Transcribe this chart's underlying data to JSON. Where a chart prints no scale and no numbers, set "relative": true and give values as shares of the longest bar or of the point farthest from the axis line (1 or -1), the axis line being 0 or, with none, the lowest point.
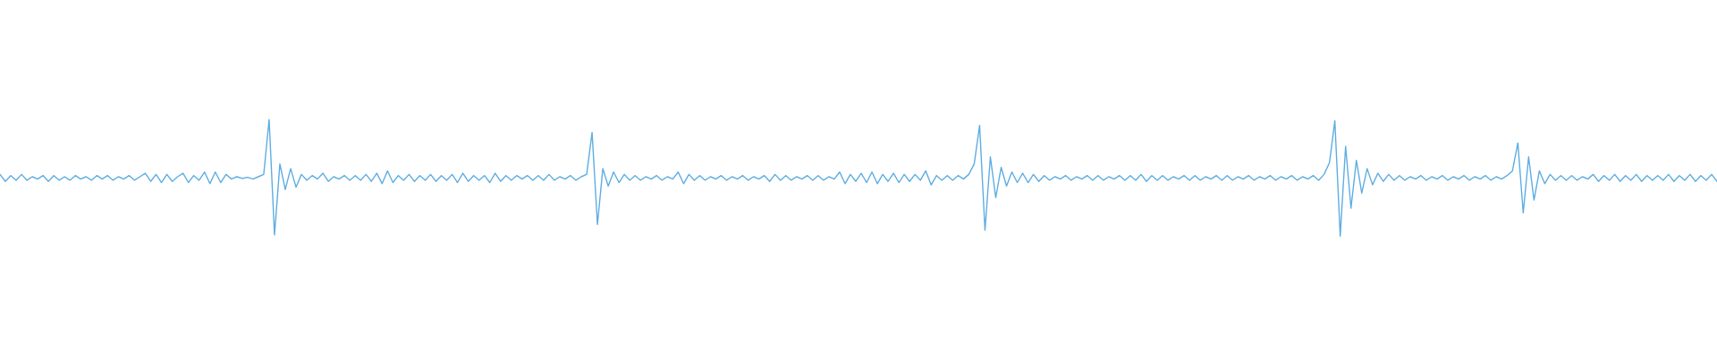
{
  "chart_data": {
    "type": "line",
    "relative": true,
    "categories": [
      null,
      null,
      null,
      null,
      null,
      null,
      null,
      null,
      null,
      null,
      null,
      null,
      null,
      null,
      null,
      null,
      null,
      null,
      null,
      null,
      null,
      null,
      null,
      null,
      null,
      null,
      null,
      null,
      null,
      null,
      null,
      null,
      null,
      null,
      null,
      null,
      null,
      null,
      null,
      null,
      null,
      null,
      null,
      null,
      null,
      null,
      null,
      null,
      null,
      null,
      null,
      null,
      null,
      null,
      null,
      null,
      null,
      null,
      null,
      null,
      null,
      null,
      null,
      null,
      null,
      null,
      null,
      null,
      null,
      null,
      null,
      null,
      null,
      null,
      null,
      null,
      null,
      null,
      null,
      null,
      null,
      null,
      null,
      null,
      null,
      null,
      null,
      null,
      null,
      null,
      null,
      null,
      null,
      null,
      null,
      null,
      null,
      null,
      null,
      null,
      null,
      null,
      null,
      null,
      null,
      null,
      null,
      null,
      null,
      null,
      null,
      null,
      null,
      null,
      null,
      null,
      null,
      null,
      null,
      null,
      null,
      null,
      null,
      null,
      null,
      null,
      null,
      null,
      null,
      null,
      null,
      null,
      null,
      null,
      null,
      null,
      null,
      null,
      null,
      null,
      null,
      null,
      null,
      null,
      null,
      null,
      null,
      null,
      null,
      null,
      null,
      null,
      null,
      null,
      null,
      null,
      null,
      null,
      null,
      null,
      null,
      null,
      null,
      null,
      null,
      null,
      null,
      null,
      null,
      null,
      null,
      null,
      null,
      null,
      null,
      null,
      null,
      null,
      null,
      null,
      null,
      null,
      null,
      null,
      null,
      null,
      null,
      null,
      null,
      null,
      null,
      null,
      null,
      null,
      null,
      null,
      null,
      null,
      null,
      null,
      null,
      null,
      null,
      null,
      null,
      null,
      null,
      null,
      null,
      null,
      null,
      null,
      null,
      null,
      null,
      null,
      null,
      null,
      null,
      null,
      null,
      null,
      null,
      null,
      null,
      null,
      null,
      null,
      null,
      null,
      null,
      null,
      null,
      null,
      null,
      null,
      null,
      null,
      null,
      null,
      null,
      null,
      null,
      null,
      null,
      null,
      null,
      null,
      null,
      null,
      null,
      null,
      null,
      null,
      null,
      null,
      null,
      null,
      null,
      null,
      null,
      null,
      null,
      null,
      null,
      null,
      null,
      null,
      null,
      null,
      null,
      null,
      null,
      null,
      null,
      null,
      null,
      null,
      null,
      null,
      null,
      null,
      null,
      null,
      null,
      null,
      null,
      null,
      null,
      null,
      null,
      null,
      null,
      null,
      null,
      null,
      null,
      null,
      null,
      null,
      null,
      null,
      null,
      null,
      null,
      null,
      null,
      null,
      null,
      null,
      null,
      null,
      null,
      null,
      null,
      null,
      null,
      null,
      null,
      null
    ],
    "series": [
      {
        "color": "#5dade2",
        "values": [
          0.53,
          0.47,
          0.52,
          0.48,
          0.53,
          0.48,
          0.51,
          0.49,
          0.52,
          0.47,
          0.52,
          0.48,
          0.51,
          0.48,
          0.52,
          0.49,
          0.51,
          0.48,
          0.52,
          0.49,
          0.52,
          0.48,
          0.51,
          0.49,
          0.52,
          0.48,
          0.51,
          0.54,
          0.47,
          0.53,
          0.46,
          0.53,
          0.47,
          0.51,
          0.54,
          0.46,
          0.52,
          0.48,
          0.55,
          0.45,
          0.55,
          0.46,
          0.53,
          0.49,
          0.51,
          0.495,
          0.505,
          0.49,
          0.51,
          0.53,
          1.0,
          0.01,
          0.62,
          0.4,
          0.58,
          0.42,
          0.53,
          0.48,
          0.52,
          0.49,
          0.54,
          0.47,
          0.51,
          0.49,
          0.52,
          0.48,
          0.52,
          0.48,
          0.53,
          0.47,
          0.54,
          0.45,
          0.56,
          0.46,
          0.52,
          0.48,
          0.53,
          0.47,
          0.52,
          0.48,
          0.53,
          0.47,
          0.52,
          0.48,
          0.53,
          0.46,
          0.54,
          0.47,
          0.52,
          0.48,
          0.52,
          0.46,
          0.54,
          0.47,
          0.52,
          0.48,
          0.52,
          0.49,
          0.52,
          0.48,
          0.52,
          0.48,
          0.53,
          0.48,
          0.51,
          0.49,
          0.52,
          0.48,
          0.51,
          0.53,
          0.89,
          0.1,
          0.58,
          0.43,
          0.55,
          0.46,
          0.53,
          0.48,
          0.52,
          0.48,
          0.51,
          0.49,
          0.52,
          0.48,
          0.51,
          0.49,
          0.55,
          0.45,
          0.53,
          0.48,
          0.52,
          0.48,
          0.51,
          0.49,
          0.52,
          0.48,
          0.51,
          0.49,
          0.52,
          0.48,
          0.51,
          0.49,
          0.52,
          0.47,
          0.53,
          0.48,
          0.52,
          0.48,
          0.51,
          0.49,
          0.52,
          0.48,
          0.52,
          0.48,
          0.51,
          0.49,
          0.55,
          0.45,
          0.53,
          0.47,
          0.54,
          0.46,
          0.55,
          0.45,
          0.53,
          0.47,
          0.54,
          0.46,
          0.53,
          0.47,
          0.53,
          0.48,
          0.56,
          0.44,
          0.52,
          0.48,
          0.52,
          0.48,
          0.52,
          0.49,
          0.53,
          0.62,
          0.95,
          0.05,
          0.68,
          0.33,
          0.59,
          0.43,
          0.55,
          0.46,
          0.54,
          0.46,
          0.53,
          0.47,
          0.52,
          0.48,
          0.51,
          0.49,
          0.52,
          0.48,
          0.51,
          0.49,
          0.52,
          0.48,
          0.52,
          0.48,
          0.51,
          0.49,
          0.52,
          0.48,
          0.52,
          0.48,
          0.53,
          0.47,
          0.52,
          0.48,
          0.52,
          0.48,
          0.51,
          0.49,
          0.52,
          0.48,
          0.52,
          0.48,
          0.51,
          0.49,
          0.52,
          0.48,
          0.52,
          0.48,
          0.51,
          0.49,
          0.52,
          0.48,
          0.51,
          0.49,
          0.52,
          0.48,
          0.51,
          0.49,
          0.52,
          0.48,
          0.51,
          0.49,
          0.52,
          0.48,
          0.53,
          0.63,
          0.99,
          0.0,
          0.77,
          0.24,
          0.65,
          0.37,
          0.58,
          0.44,
          0.54,
          0.47,
          0.53,
          0.48,
          0.52,
          0.48,
          0.51,
          0.49,
          0.52,
          0.48,
          0.51,
          0.49,
          0.52,
          0.48,
          0.51,
          0.49,
          0.52,
          0.48,
          0.51,
          0.49,
          0.52,
          0.48,
          0.51,
          0.49,
          0.52,
          0.56,
          0.8,
          0.2,
          0.68,
          0.31,
          0.56,
          0.45,
          0.53,
          0.48,
          0.52,
          0.48,
          0.52,
          0.48,
          0.51,
          0.49,
          0.53,
          0.47,
          0.52,
          0.48,
          0.53,
          0.47,
          0.52,
          0.48,
          0.53,
          0.47,
          0.52,
          0.48,
          0.52,
          0.48,
          0.53,
          0.47,
          0.52,
          0.48,
          0.53,
          0.47,
          0.52,
          0.48,
          0.53,
          0.47
        ]
      }
    ]
  }
}
